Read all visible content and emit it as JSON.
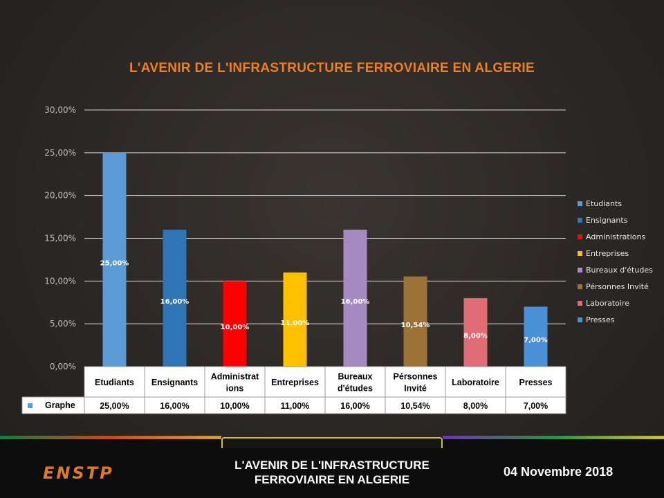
{
  "chart_data": {
    "type": "bar",
    "title": "L'AVENIR DE L'INFRASTRUCTURE  FERROVIAIRE  EN ALGERIE",
    "categories": [
      "Etudiants",
      "Ensignants",
      "Administrations",
      "Entreprises",
      "Bureaux d'études",
      "Pérsonnes Invité",
      "Laboratoire",
      "Presses"
    ],
    "table_categories": [
      "Etudiants",
      "Ensignants",
      "Administrat ions",
      "Entreprises",
      "Bureaux d'études",
      "Pérsonnes Invité",
      "Laboratoire",
      "Presses"
    ],
    "values": [
      25.0,
      16.0,
      10.0,
      11.0,
      16.0,
      10.54,
      8.0,
      7.0
    ],
    "value_labels": [
      "25,00%",
      "16,00%",
      "10,00%",
      "11,00%",
      "16,00%",
      "10,54%",
      "8,00%",
      "7,00%"
    ],
    "colors": [
      "#5b9bd5",
      "#2e75b6",
      "#ff0000",
      "#ffc000",
      "#a68bc2",
      "#9c7238",
      "#e06c75",
      "#4a90d9"
    ],
    "yticks": [
      "0,00%",
      "5,00%",
      "10,00%",
      "15,00%",
      "20,00%",
      "25,00%",
      "30,00%"
    ],
    "ylim": [
      0,
      30
    ],
    "grid": true,
    "legend_position": "right",
    "series_name": "Graphe",
    "series_color": "#5b9bd5"
  },
  "footer": {
    "logo": "ENSTP",
    "title_line1": "L'AVENIR DE L'INFRASTRUCTURE",
    "title_line2": "FERROVIAIRE EN ALGERIE",
    "date": "04 Novembre  2018"
  }
}
